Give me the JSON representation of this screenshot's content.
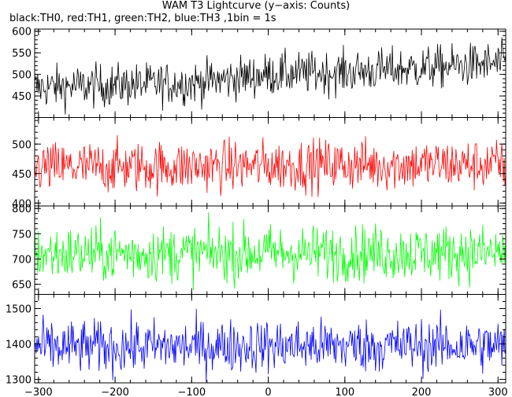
{
  "title": "WAM T3 Lightcurve (y−axis: Counts)",
  "subtitle": "black:TH0, red:TH1, green:TH2, blue:TH3 ,1bin = 1s",
  "chart_data": {
    "type": "line",
    "title": "WAM T3 Lightcurve (y−axis: Counts)",
    "ylabel_note": "Counts",
    "bin": "1bin = 1s",
    "x_range": [
      -305,
      310
    ],
    "x_ticks": [
      -300,
      -200,
      -100,
      0,
      100,
      200,
      300
    ],
    "x_tick_labels": [
      "−300",
      "−200",
      "−100",
      "0",
      "100",
      "200",
      "300"
    ],
    "panels": [
      {
        "name": "TH0",
        "color": "#000000",
        "ylim": [
          400,
          605
        ],
        "y_ticks": [
          450,
          500,
          550,
          600
        ],
        "trend": [
          [
            -300,
            470
          ],
          [
            -200,
            475
          ],
          [
            -100,
            480
          ],
          [
            0,
            500
          ],
          [
            100,
            505
          ],
          [
            200,
            515
          ],
          [
            300,
            525
          ]
        ],
        "noise": 25
      },
      {
        "name": "TH1",
        "color": "#ff0000",
        "ylim": [
          395,
          545
        ],
        "y_ticks": [
          400,
          450,
          500
        ],
        "trend": [
          [
            -300,
            460
          ],
          [
            -100,
            462
          ],
          [
            100,
            465
          ],
          [
            300,
            465
          ]
        ],
        "noise": 22
      },
      {
        "name": "TH2",
        "color": "#00ff00",
        "ylim": [
          630,
          805
        ],
        "y_ticks": [
          650,
          700,
          750,
          800
        ],
        "trend": [
          [
            -300,
            710
          ],
          [
            0,
            712
          ],
          [
            300,
            712
          ]
        ],
        "noise": 28
      },
      {
        "name": "TH3",
        "color": "#0000ff",
        "ylim": [
          1290,
          1540
        ],
        "y_ticks": [
          1300,
          1400,
          1500
        ],
        "trend": [
          [
            -300,
            1390
          ],
          [
            0,
            1395
          ],
          [
            300,
            1395
          ]
        ],
        "noise": 38
      }
    ]
  }
}
